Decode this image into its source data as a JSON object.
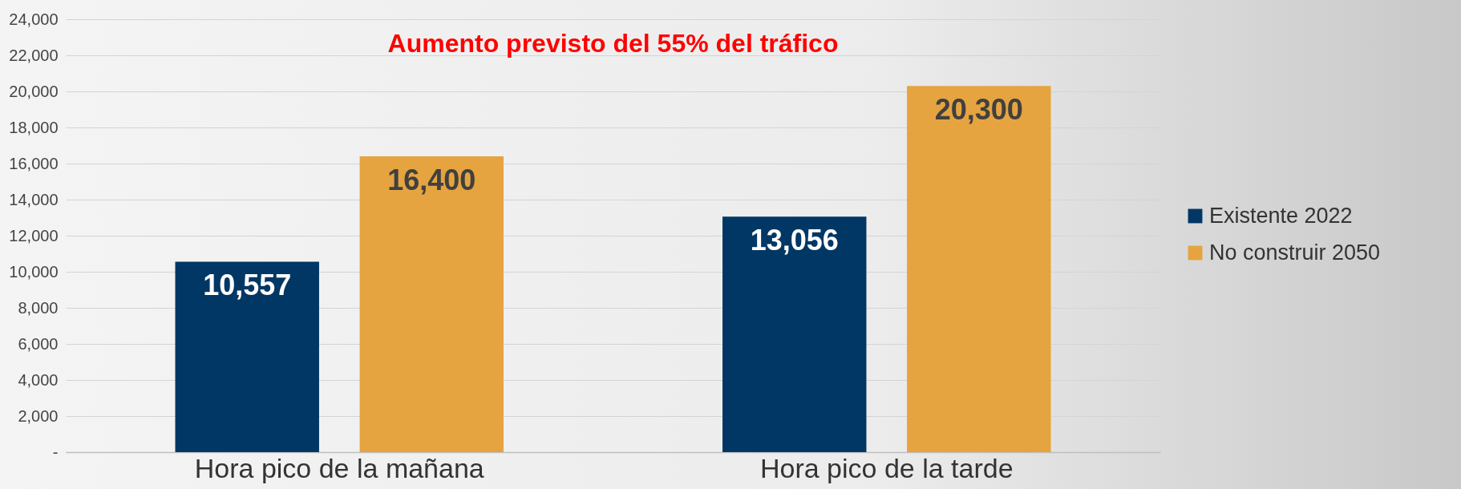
{
  "chart_data": {
    "type": "bar",
    "title": "Aumento previsto del 55% del tráfico",
    "categories": [
      "Hora pico de la mañana",
      "Hora pico de la tarde"
    ],
    "series": [
      {
        "name": "Existente 2022",
        "color": "#003764",
        "values": [
          10557,
          13056
        ],
        "value_labels": [
          "10,557",
          "13,056"
        ]
      },
      {
        "name": "No construir 2050",
        "color": "#e5a43f",
        "values": [
          16400,
          20300
        ],
        "value_labels": [
          "16,400",
          "20,300"
        ]
      }
    ],
    "ylim": [
      0,
      24000
    ],
    "yticks": [
      {
        "value": 0,
        "label": "-"
      },
      {
        "value": 2000,
        "label": "2,000"
      },
      {
        "value": 4000,
        "label": "4,000"
      },
      {
        "value": 6000,
        "label": "6,000"
      },
      {
        "value": 8000,
        "label": "8,000"
      },
      {
        "value": 10000,
        "label": "10,000"
      },
      {
        "value": 12000,
        "label": "12,000"
      },
      {
        "value": 14000,
        "label": "14,000"
      },
      {
        "value": 16000,
        "label": "16,000"
      },
      {
        "value": 18000,
        "label": "18,000"
      },
      {
        "value": 20000,
        "label": "20,000"
      },
      {
        "value": 22000,
        "label": "22,000"
      },
      {
        "value": 24000,
        "label": "24,000"
      }
    ],
    "grid": "y",
    "legend": "right"
  }
}
